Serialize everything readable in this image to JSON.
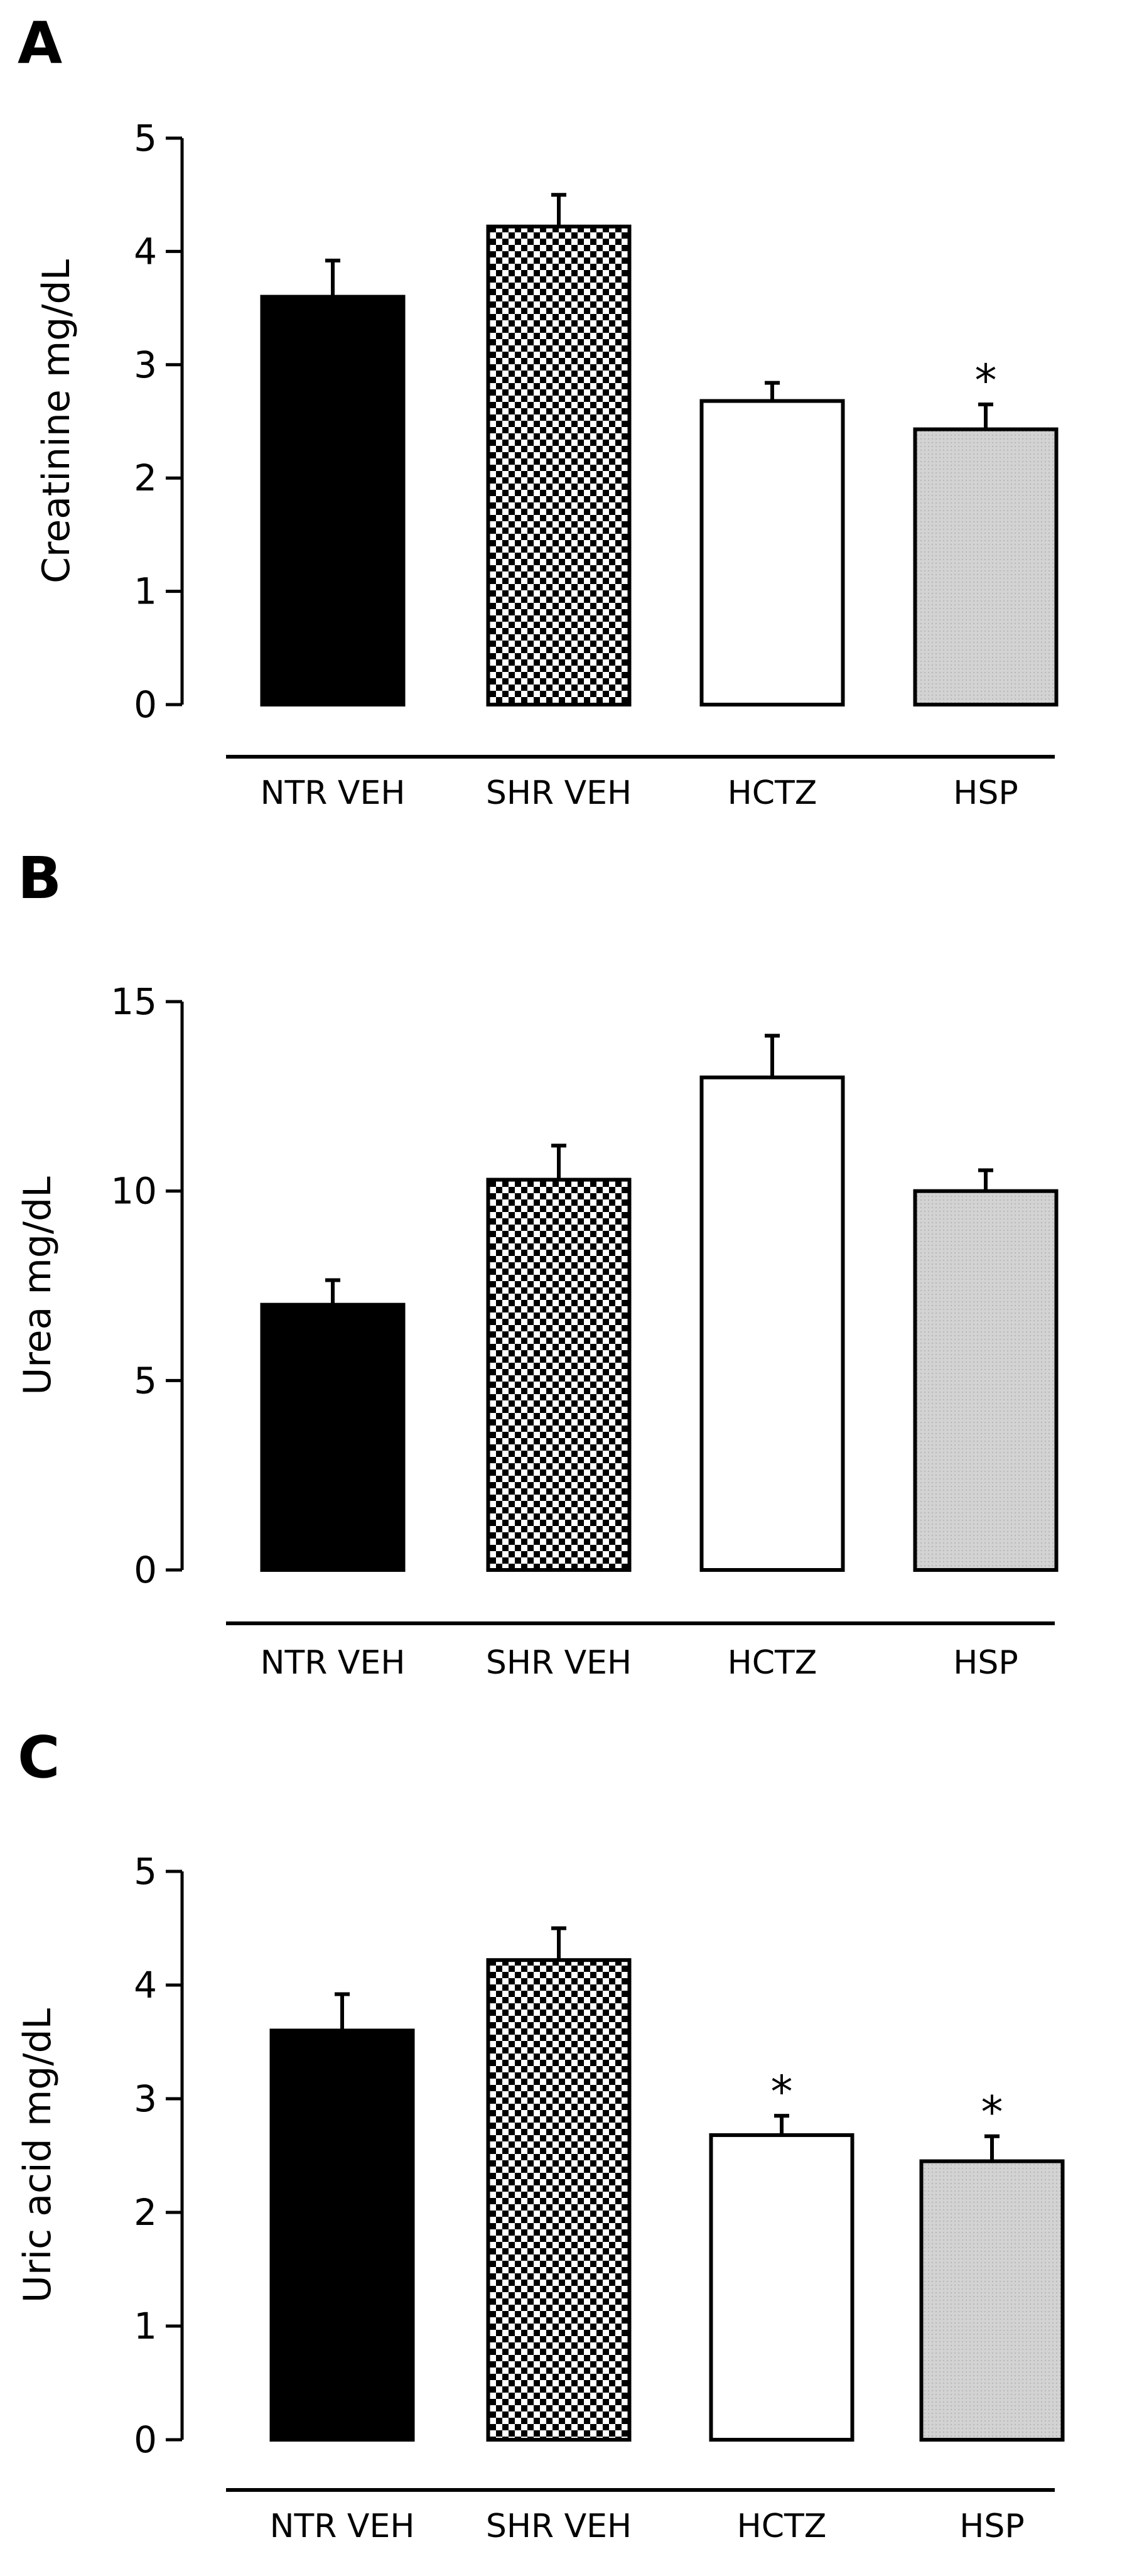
{
  "chart_data": [
    {
      "panel": "A",
      "type": "bar",
      "categories": [
        "NTR VEH",
        "SHR VEH",
        "HCTZ",
        "HSP"
      ],
      "values": [
        3.6,
        4.22,
        2.68,
        2.43
      ],
      "errors": [
        0.32,
        0.28,
        0.16,
        0.22
      ],
      "significance": [
        "",
        "",
        "",
        "*"
      ],
      "fills": [
        "solid-black",
        "checker",
        "white",
        "light-gray"
      ],
      "ylabel": "Creatinine mg/dL",
      "xlabel": "",
      "ylim": [
        0,
        5
      ],
      "yticks": [
        0,
        1,
        2,
        3,
        4,
        5
      ]
    },
    {
      "panel": "B",
      "type": "bar",
      "categories": [
        "NTR VEH",
        "SHR VEH",
        "HCTZ",
        "HSP"
      ],
      "values": [
        7.0,
        10.3,
        13.0,
        10.0
      ],
      "errors": [
        0.65,
        0.9,
        1.1,
        0.55
      ],
      "significance": [
        "",
        "",
        "",
        ""
      ],
      "fills": [
        "solid-black",
        "checker",
        "white",
        "light-gray"
      ],
      "ylabel": "Urea mg/dL",
      "xlabel": "",
      "ylim": [
        0,
        15
      ],
      "yticks": [
        0,
        5,
        10,
        15
      ]
    },
    {
      "panel": "C",
      "type": "bar",
      "categories": [
        "NTR VEH",
        "SHR VEH",
        "HCTZ",
        "HSP"
      ],
      "values": [
        3.6,
        4.22,
        2.68,
        2.45
      ],
      "errors": [
        0.32,
        0.28,
        0.17,
        0.22
      ],
      "significance": [
        "",
        "",
        "*",
        "*"
      ],
      "fills": [
        "solid-black",
        "checker",
        "white",
        "light-gray"
      ],
      "ylabel": "Uric acid mg/dL",
      "xlabel": "",
      "ylim": [
        0,
        5
      ],
      "yticks": [
        0,
        1,
        2,
        3,
        4,
        5
      ]
    }
  ]
}
